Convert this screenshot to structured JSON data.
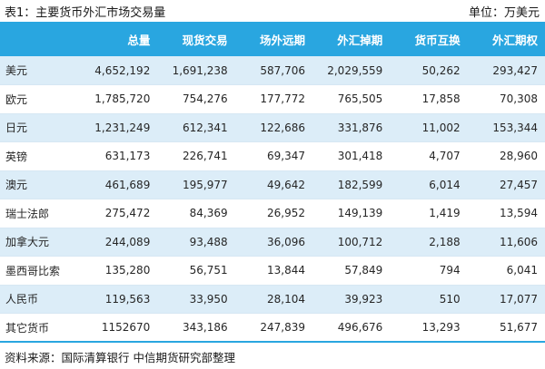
{
  "header": {
    "title": "表1：主要货币外汇市场交易量",
    "unit": "单位：万美元"
  },
  "table": {
    "columns": [
      "",
      "总量",
      "现货交易",
      "场外远期",
      "外汇掉期",
      "货币互换",
      "外汇期权"
    ],
    "rows": [
      [
        "美元",
        "4,652,192",
        "1,691,238",
        "587,706",
        "2,029,559",
        "50,262",
        "293,427"
      ],
      [
        "欧元",
        "1,785,720",
        "754,276",
        "177,772",
        "765,505",
        "17,858",
        "70,308"
      ],
      [
        "日元",
        "1,231,249",
        "612,341",
        "122,686",
        "331,876",
        "11,002",
        "153,344"
      ],
      [
        "英镑",
        "631,173",
        "226,741",
        "69,347",
        "301,418",
        "4,707",
        "28,960"
      ],
      [
        "澳元",
        "461,689",
        "195,977",
        "49,642",
        "182,599",
        "6,014",
        "27,457"
      ],
      [
        "瑞士法郎",
        "275,472",
        "84,369",
        "26,952",
        "149,139",
        "1,419",
        "13,594"
      ],
      [
        "加拿大元",
        "244,089",
        "93,488",
        "36,096",
        "100,712",
        "2,188",
        "11,606"
      ],
      [
        "墨西哥比索",
        "135,280",
        "56,751",
        "13,844",
        "57,849",
        "794",
        "6,041"
      ],
      [
        "人民币",
        "119,563",
        "33,950",
        "28,104",
        "39,923",
        "510",
        "17,077"
      ],
      [
        "其它货币",
        "1152670",
        "343,186",
        "247,839",
        "496,676",
        "13,293",
        "51,677"
      ]
    ]
  },
  "footer": {
    "source": "资料来源：国际清算银行 中信期货研究部整理"
  },
  "colors": {
    "header_bg": "#29a6e0",
    "header_text": "#ffffff",
    "stripe": "#dcedf8"
  }
}
